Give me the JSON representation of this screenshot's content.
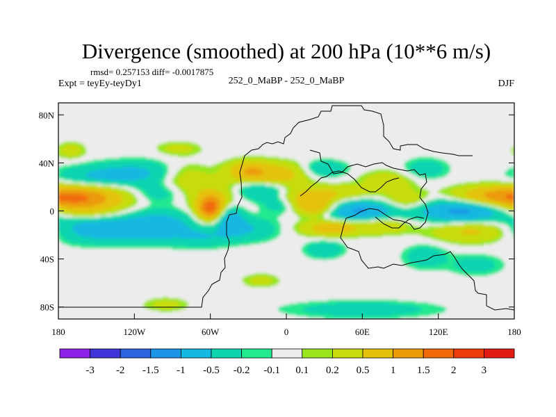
{
  "chart_data": {
    "type": "heatmap",
    "title": "Divergence (smoothed) at 200 hPa (10**6 m/s)",
    "stats": "rmsd= 0.257153 diff= -0.0017875",
    "experiment": "Expt = teyEy-teyDy1",
    "case": "252_0_MaBP - 252_0_MaBP",
    "season": "DJF",
    "xlim": [
      -180,
      180
    ],
    "ylim": [
      -90,
      90
    ],
    "x_ticks": [
      {
        "value": -180,
        "label": "180"
      },
      {
        "value": -120,
        "label": "120W"
      },
      {
        "value": -60,
        "label": "60W"
      },
      {
        "value": 0,
        "label": "0"
      },
      {
        "value": 60,
        "label": "60E"
      },
      {
        "value": 120,
        "label": "120E"
      },
      {
        "value": 180,
        "label": "180"
      }
    ],
    "y_ticks": [
      {
        "value": 80,
        "label": "80N"
      },
      {
        "value": 40,
        "label": "40N"
      },
      {
        "value": 0,
        "label": "0"
      },
      {
        "value": -40,
        "label": "40S"
      },
      {
        "value": -80,
        "label": "80S"
      }
    ],
    "colorbar": {
      "colors": [
        "#8c22e6",
        "#3e34d8",
        "#2a64e0",
        "#1b94e8",
        "#14b8e0",
        "#0fd4b0",
        "#22e890",
        "#ececec",
        "#9ae61e",
        "#c8dc10",
        "#e4c20a",
        "#ec9a08",
        "#f06a0a",
        "#ec3c0c",
        "#e01c14"
      ],
      "labels": [
        "-3",
        "-2",
        "-1.5",
        "-1",
        "-0.5",
        "-0.2",
        "-0.1",
        "0.1",
        "0.2",
        "0.5",
        "1",
        "1.5",
        "2",
        "3"
      ]
    },
    "contour_levels": [
      -3,
      -2,
      -1.5,
      -1,
      -0.5,
      -0.2,
      -0.1,
      0.1,
      0.2,
      0.5,
      1,
      1.5,
      2,
      3
    ],
    "features": [
      {
        "lon": -168,
        "lat": 10,
        "value": 1.1,
        "slon": 22,
        "slat": 7
      },
      {
        "lon": -150,
        "lat": 12,
        "value": 0.5,
        "slon": 24,
        "slat": 9
      },
      {
        "lon": -150,
        "lat": 28,
        "value": -0.6,
        "slon": 22,
        "slat": 7
      },
      {
        "lon": -115,
        "lat": 32,
        "value": -0.5,
        "slon": 20,
        "slat": 7
      },
      {
        "lon": -100,
        "lat": 15,
        "value": -0.4,
        "slon": 16,
        "slat": 6
      },
      {
        "lon": -160,
        "lat": -2,
        "value": 0.3,
        "slon": 20,
        "slat": 4
      },
      {
        "lon": -150,
        "lat": -15,
        "value": -0.8,
        "slon": 30,
        "slat": 8
      },
      {
        "lon": -100,
        "lat": -12,
        "value": -0.7,
        "slon": 20,
        "slat": 9
      },
      {
        "lon": -80,
        "lat": 25,
        "value": 0.4,
        "slon": 14,
        "slat": 10
      },
      {
        "lon": -60,
        "lat": 2,
        "value": 1.6,
        "slon": 7,
        "slat": 7
      },
      {
        "lon": -55,
        "lat": 10,
        "value": 0.5,
        "slon": 14,
        "slat": 10
      },
      {
        "lon": -45,
        "lat": -5,
        "value": -0.8,
        "slon": 8,
        "slat": 8
      },
      {
        "lon": -30,
        "lat": -15,
        "value": -0.5,
        "slon": 16,
        "slat": 7
      },
      {
        "lon": -65,
        "lat": -22,
        "value": -0.4,
        "slon": 16,
        "slat": 6
      },
      {
        "lon": -30,
        "lat": 33,
        "value": 0.9,
        "slon": 12,
        "slat": 6
      },
      {
        "lon": -5,
        "lat": 30,
        "value": 0.7,
        "slon": 16,
        "slat": 7
      },
      {
        "lon": -20,
        "lat": 17,
        "value": -0.6,
        "slon": 15,
        "slat": 6
      },
      {
        "lon": -5,
        "lat": 5,
        "value": -0.4,
        "slon": 10,
        "slat": 5
      },
      {
        "lon": 15,
        "lat": 10,
        "value": 0.6,
        "slon": 16,
        "slat": 6
      },
      {
        "lon": 40,
        "lat": 15,
        "value": 0.4,
        "slon": 20,
        "slat": 5
      },
      {
        "lon": 25,
        "lat": 2,
        "value": 0.9,
        "slon": 12,
        "slat": 5
      },
      {
        "lon": 55,
        "lat": 0,
        "value": -1.1,
        "slon": 22,
        "slat": 6
      },
      {
        "lon": 35,
        "lat": -14,
        "value": 0.8,
        "slon": 16,
        "slat": 5
      },
      {
        "lon": 75,
        "lat": -12,
        "value": 0.5,
        "slon": 16,
        "slat": 5
      },
      {
        "lon": 30,
        "lat": 35,
        "value": -0.5,
        "slon": 12,
        "slat": 5
      },
      {
        "lon": 80,
        "lat": 25,
        "value": 0.4,
        "slon": 15,
        "slat": 6
      },
      {
        "lon": 95,
        "lat": 8,
        "value": 0.5,
        "slon": 12,
        "slat": 6
      },
      {
        "lon": 140,
        "lat": 0,
        "value": -1.2,
        "slon": 26,
        "slat": 7
      },
      {
        "lon": 160,
        "lat": 12,
        "value": 0.9,
        "slon": 22,
        "slat": 6
      },
      {
        "lon": 150,
        "lat": -16,
        "value": 0.7,
        "slon": 24,
        "slat": 7
      },
      {
        "lon": 110,
        "lat": 35,
        "value": -0.4,
        "slon": 12,
        "slat": 6
      },
      {
        "lon": 30,
        "lat": -32,
        "value": -0.5,
        "slon": 10,
        "slat": 5
      },
      {
        "lon": 110,
        "lat": -38,
        "value": -0.4,
        "slon": 12,
        "slat": 7
      },
      {
        "lon": 150,
        "lat": -45,
        "value": -0.35,
        "slon": 14,
        "slat": 6
      },
      {
        "lon": -95,
        "lat": -78,
        "value": 0.3,
        "slon": 12,
        "slat": 4
      },
      {
        "lon": 60,
        "lat": -82,
        "value": -0.4,
        "slon": 40,
        "slat": 5
      },
      {
        "lon": -20,
        "lat": -58,
        "value": 0.3,
        "slon": 10,
        "slat": 4
      },
      {
        "lon": -170,
        "lat": 50,
        "value": 0.35,
        "slon": 8,
        "slat": 5
      },
      {
        "lon": -85,
        "lat": 52,
        "value": 0.3,
        "slon": 12,
        "slat": 4
      }
    ]
  }
}
